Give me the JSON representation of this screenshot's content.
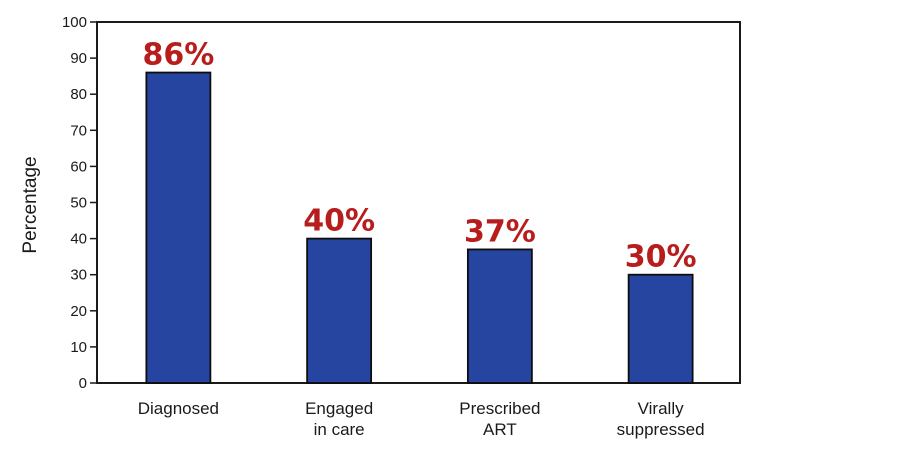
{
  "chart_data": {
    "type": "bar",
    "categories": [
      "Diagnosed",
      "Engaged in care",
      "Prescribed ART",
      "Virally suppressed"
    ],
    "category_lines": [
      [
        "Diagnosed"
      ],
      [
        "Engaged",
        "in care"
      ],
      [
        "Prescribed",
        "ART"
      ],
      [
        "Virally",
        "suppressed"
      ]
    ],
    "values": [
      86,
      40,
      37,
      30
    ],
    "data_labels": [
      "86%",
      "40%",
      "37%",
      "30%"
    ],
    "ylabel": "Percentage",
    "xlabel": "",
    "ylim": [
      0,
      100
    ],
    "yticks": [
      0,
      10,
      20,
      30,
      40,
      50,
      60,
      70,
      80,
      90,
      100
    ],
    "grid": false,
    "colors": {
      "bar": "#2545a0",
      "bar_stroke": "#0d0d0d",
      "label": "#b81d1d",
      "axis": "#1a1a1a"
    }
  }
}
